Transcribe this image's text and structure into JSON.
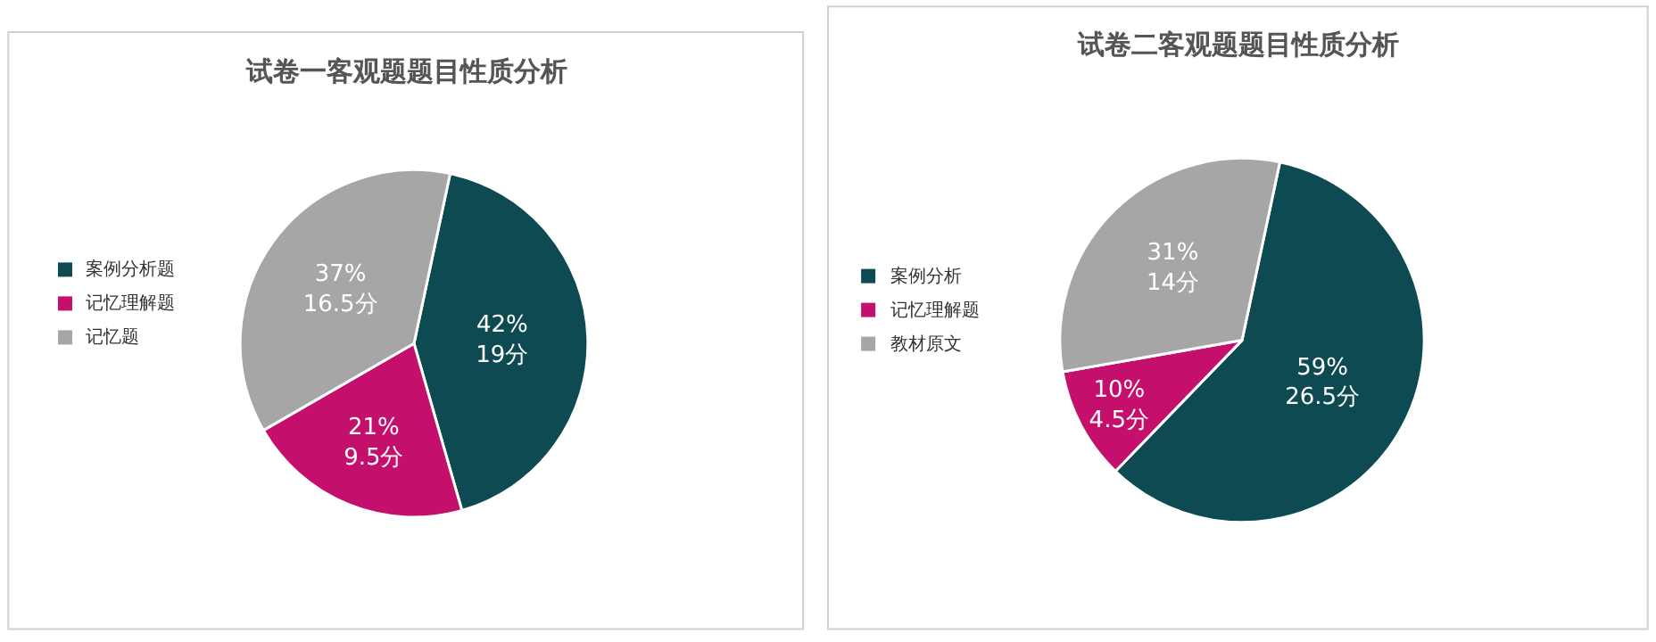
{
  "chart_data": [
    {
      "type": "pie",
      "title": "试卷一客观题题目性质分析",
      "categories": [
        "案例分析题",
        "记忆理解题",
        "记忆题"
      ],
      "values": [
        19,
        9.5,
        16.5
      ],
      "colors": [
        "#0e4a51",
        "#c4106c",
        "#a6a6a6"
      ],
      "value_labels": [
        "42%\n19分",
        "21%\n9.5分",
        "37%\n16.5分"
      ],
      "legend": "left"
    },
    {
      "type": "pie",
      "title": "试卷二客观题题目性质分析",
      "categories": [
        "案例分析",
        "记忆理解题",
        "教材原文"
      ],
      "values": [
        26.5,
        4.5,
        14
      ],
      "colors": [
        "#0e4a51",
        "#c4106c",
        "#a6a6a6"
      ],
      "value_labels": [
        "59%\n26.5分",
        "10%\n4.5分",
        "31%\n14分"
      ],
      "legend": "left"
    }
  ]
}
